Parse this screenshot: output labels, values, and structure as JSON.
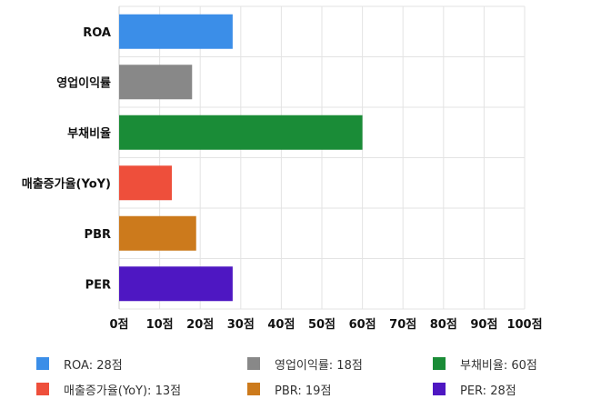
{
  "chart_data": {
    "type": "bar",
    "orientation": "horizontal",
    "categories": [
      "ROA",
      "영업이익률",
      "부채비율",
      "매출증가율(YoY)",
      "PBR",
      "PER"
    ],
    "values": [
      28,
      18,
      60,
      13,
      19,
      28
    ],
    "colors": [
      "#3b8ee8",
      "#888888",
      "#1a8c37",
      "#ee4f3b",
      "#cc7a1c",
      "#4e17c2"
    ],
    "xlim": [
      0,
      100
    ],
    "x_ticks": [
      "0점",
      "10점",
      "20점",
      "30점",
      "40점",
      "50점",
      "60점",
      "70점",
      "80점",
      "90점",
      "100점"
    ],
    "grid": true,
    "legend_position": "bottom",
    "legend": [
      "ROA: 28점",
      "영업이익률: 18점",
      "부채비율: 60점",
      "매출증가율(YoY): 13점",
      "PBR: 19점",
      "PER: 28점"
    ]
  }
}
